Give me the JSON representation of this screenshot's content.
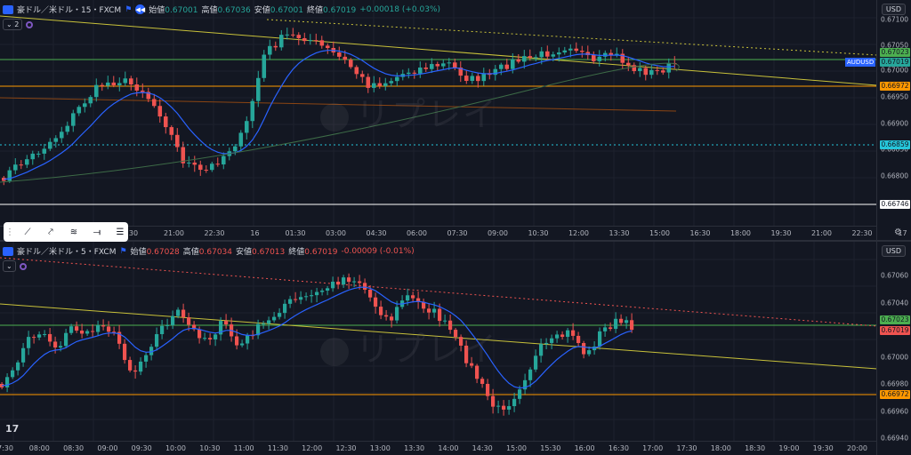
{
  "top": {
    "symbol": "豪ドル／米ドル・15・FXCM",
    "collapse_label": "2",
    "ohlc": [
      {
        "k": "始値",
        "v": "0.67001"
      },
      {
        "k": "高値",
        "v": "0.67036"
      },
      {
        "k": "安値",
        "v": "0.67001"
      },
      {
        "k": "終値",
        "v": "0.67019"
      }
    ],
    "change": "+0.00018 (+0.03%)",
    "currency": "USD",
    "yticks": [
      "0.67100",
      "0.67050",
      "0.67000",
      "0.66950",
      "0.66900",
      "0.66850",
      "0.66800"
    ],
    "price_labels": [
      {
        "text": "0.67023",
        "color": "#4caf50"
      },
      {
        "text": "0.67019",
        "color": "#26a69a"
      },
      {
        "text": "0.66972",
        "color": "#ff9800"
      },
      {
        "text": "0.66859",
        "color": "#26c6da"
      },
      {
        "text": "0.66746",
        "color": "#ffffff"
      }
    ],
    "symbol_tag": "AUDUSD",
    "xticks": [
      "30",
      "21:00",
      "22:30",
      "16",
      "01:30",
      "03:00",
      "04:30",
      "06:00",
      "07:30",
      "09:00",
      "10:30",
      "12:00",
      "13:30",
      "15:00",
      "16:30",
      "18:00",
      "19:30",
      "21:00",
      "22:30",
      "17"
    ]
  },
  "bottom": {
    "symbol": "豪ドル／米ドル・5・FXCM",
    "ohlc": [
      {
        "k": "始値",
        "v": "0.67028"
      },
      {
        "k": "高値",
        "v": "0.67034"
      },
      {
        "k": "安値",
        "v": "0.67013"
      },
      {
        "k": "終値",
        "v": "0.67019"
      }
    ],
    "change": "-0.00009 (-0.01%)",
    "currency": "USD",
    "yticks": [
      "0.67060",
      "0.67040",
      "0.67000",
      "0.66980",
      "0.66960",
      "0.66940"
    ],
    "price_labels": [
      {
        "text": "0.67023",
        "color": "#4caf50"
      },
      {
        "text": "0.67019",
        "color": "#ef5350"
      },
      {
        "text": "0.66972",
        "color": "#ff9800"
      }
    ],
    "xticks": [
      "7:30",
      "08:00",
      "08:30",
      "09:00",
      "09:30",
      "10:00",
      "10:30",
      "11:00",
      "11:30",
      "12:00",
      "12:30",
      "13:00",
      "13:30",
      "14:00",
      "14:30",
      "15:00",
      "15:30",
      "16:00",
      "16:30",
      "17:00",
      "17:30",
      "18:00",
      "18:30",
      "19:00",
      "19:30",
      "20:00"
    ]
  },
  "watermark": "リプレイ",
  "drawing_toolbar": [
    "trend-line-icon",
    "ray-icon",
    "fib-icon",
    "horizontal-ray-icon",
    "parallel-lines-icon"
  ],
  "colors": {
    "up": "#26a69a",
    "down": "#ef5350",
    "ma": "#2962ff",
    "support": "#ff9800",
    "trend": "#c8c13a"
  }
}
